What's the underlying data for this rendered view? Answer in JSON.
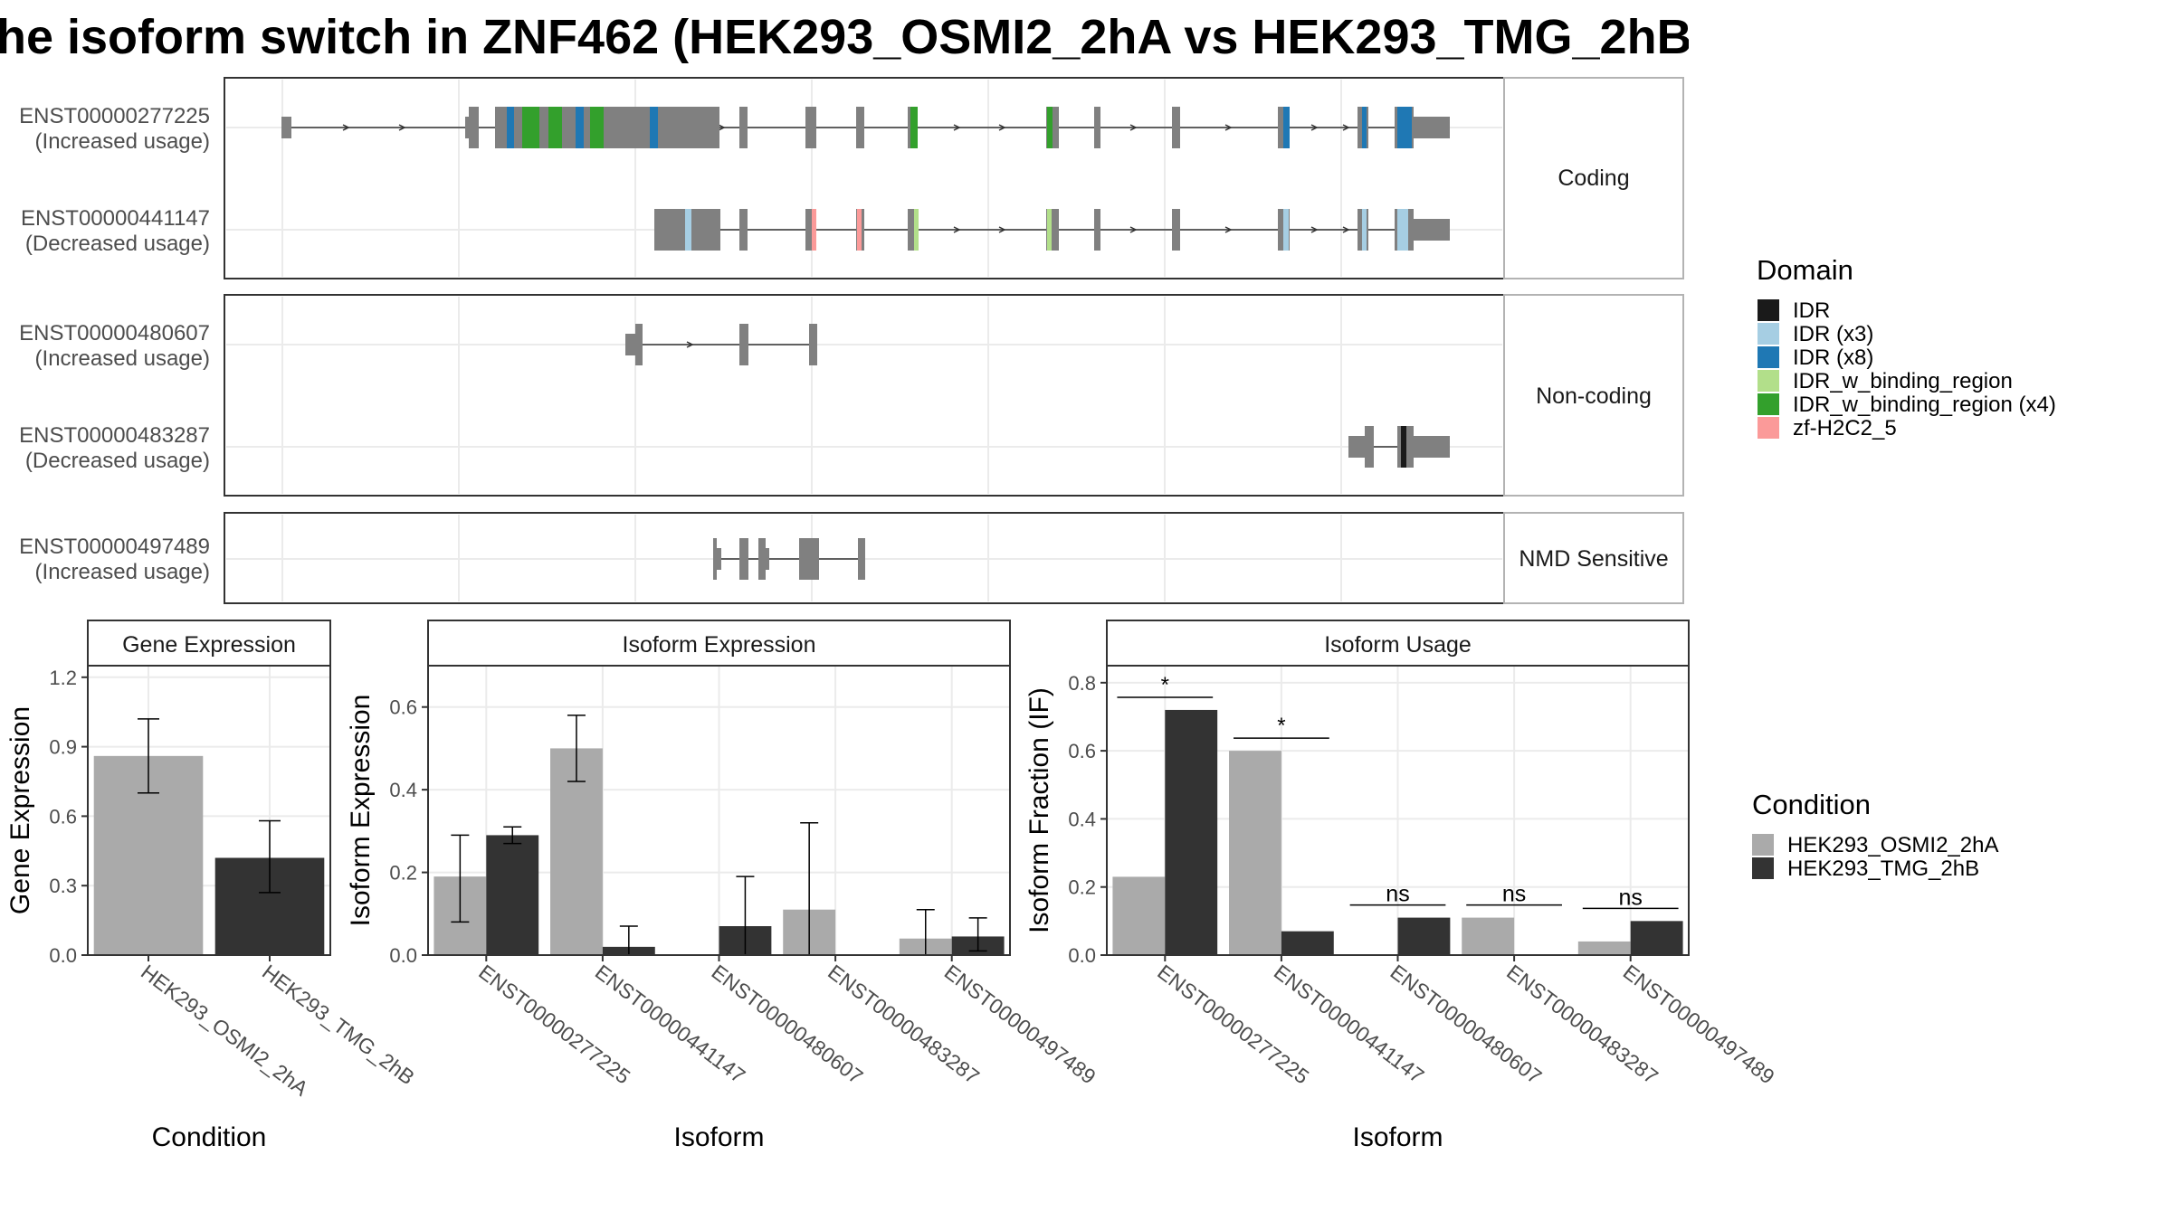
{
  "title": "he isoform switch in ZNF462 (HEK293_OSMI2_2hA vs HEK293_TMG_2hB",
  "colors": {
    "idr": "#1a1a1a",
    "idr_x3": "#a6cee3",
    "idr_x8": "#1f78b4",
    "idr_binding": "#b2df8a",
    "idr_binding_x4": "#33a02c",
    "zf": "#fb9a99",
    "exon": "#808080",
    "condition_a": "#aaaaaa",
    "condition_b": "#333333"
  },
  "structure": {
    "facets": [
      "Coding",
      "Non-coding",
      "NMD Sensitive"
    ],
    "transcripts": [
      {
        "id": "ENST00000277225",
        "usage": "(Increased usage)",
        "facet": 0
      },
      {
        "id": "ENST00000441147",
        "usage": "(Decreased usage)",
        "facet": 0
      },
      {
        "id": "ENST00000480607",
        "usage": "(Increased usage)",
        "facet": 1
      },
      {
        "id": "ENST00000483287",
        "usage": "(Decreased usage)",
        "facet": 1
      },
      {
        "id": "ENST00000497489",
        "usage": "(Increased usage)",
        "facet": 2
      }
    ]
  },
  "legend_domain": {
    "title": "Domain",
    "items": [
      {
        "label": "IDR",
        "color": "#1a1a1a"
      },
      {
        "label": "IDR (x3)",
        "color": "#a6cee3"
      },
      {
        "label": "IDR (x8)",
        "color": "#1f78b4"
      },
      {
        "label": "IDR_w_binding_region",
        "color": "#b2df8a"
      },
      {
        "label": "IDR_w_binding_region (x4)",
        "color": "#33a02c"
      },
      {
        "label": "zf-H2C2_5",
        "color": "#fb9a99"
      }
    ]
  },
  "legend_condition": {
    "title": "Condition",
    "items": [
      {
        "label": "HEK293_OSMI2_2hA",
        "color": "#aaaaaa"
      },
      {
        "label": "HEK293_TMG_2hB",
        "color": "#333333"
      }
    ]
  },
  "chart_data": [
    {
      "type": "bar",
      "title": "Gene Expression",
      "xlabel": "Condition",
      "ylabel": "Gene Expression",
      "ylim": [
        0,
        1.25
      ],
      "yticks": [
        "0.0",
        "0.3",
        "0.6",
        "0.9",
        "1.2"
      ],
      "categories": [
        "HEK293_OSMI2_2hA",
        "HEK293_TMG_2hB"
      ],
      "values": [
        0.86,
        0.42
      ],
      "err_low": [
        0.7,
        0.27
      ],
      "err_high": [
        1.02,
        0.58
      ]
    },
    {
      "type": "bar",
      "title": "Isoform Expression",
      "xlabel": "Isoform",
      "ylabel": "Isoform Expression",
      "ylim": [
        0,
        0.7
      ],
      "yticks": [
        "0.0",
        "0.2",
        "0.4",
        "0.6"
      ],
      "categories": [
        "ENST00000277225",
        "ENST00000441147",
        "ENST00000480607",
        "ENST00000483287",
        "ENST00000497489"
      ],
      "series": [
        {
          "name": "HEK293_OSMI2_2hA",
          "values": [
            0.19,
            0.5,
            0.0,
            0.11,
            0.04
          ],
          "err_low": [
            0.08,
            0.42,
            0.0,
            0.0,
            0.0
          ],
          "err_high": [
            0.29,
            0.58,
            0.0,
            0.32,
            0.11
          ]
        },
        {
          "name": "HEK293_TMG_2hB",
          "values": [
            0.29,
            0.02,
            0.07,
            0.0,
            0.045
          ],
          "err_low": [
            0.27,
            0.0,
            0.0,
            0.0,
            0.01
          ],
          "err_high": [
            0.31,
            0.07,
            0.19,
            0.0,
            0.09
          ]
        }
      ]
    },
    {
      "type": "bar",
      "title": "Isoform Usage",
      "xlabel": "Isoform",
      "ylabel": "Isoform Fraction (IF)",
      "ylim": [
        0,
        0.85
      ],
      "yticks": [
        "0.0",
        "0.2",
        "0.4",
        "0.6",
        "0.8"
      ],
      "categories": [
        "ENST00000277225",
        "ENST00000441147",
        "ENST00000480607",
        "ENST00000483287",
        "ENST00000497489"
      ],
      "series": [
        {
          "name": "HEK293_OSMI2_2hA",
          "values": [
            0.23,
            0.6,
            0.0,
            0.11,
            0.04
          ]
        },
        {
          "name": "HEK293_TMG_2hB",
          "values": [
            0.72,
            0.07,
            0.11,
            0.0,
            0.1
          ]
        }
      ],
      "significance": [
        "*",
        "*",
        "ns",
        "ns",
        "ns"
      ]
    }
  ]
}
